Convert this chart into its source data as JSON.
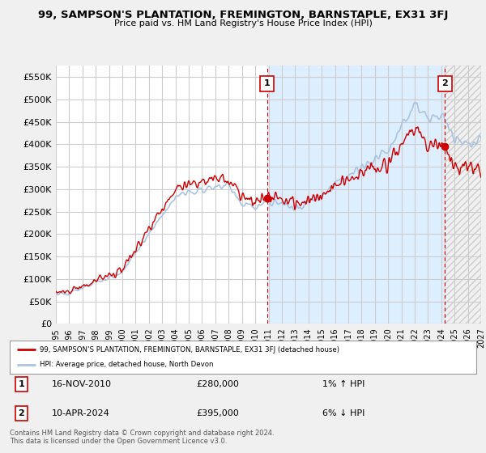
{
  "title": "99, SAMPSON'S PLANTATION, FREMINGTON, BARNSTAPLE, EX31 3FJ",
  "subtitle": "Price paid vs. HM Land Registry's House Price Index (HPI)",
  "legend_line1": "99, SAMPSON'S PLANTATION, FREMINGTON, BARNSTAPLE, EX31 3FJ (detached house)",
  "legend_line2": "HPI: Average price, detached house, North Devon",
  "annotation1_date": "16-NOV-2010",
  "annotation1_price": "£280,000",
  "annotation1_hpi": "1% ↑ HPI",
  "annotation2_date": "10-APR-2024",
  "annotation2_price": "£395,000",
  "annotation2_hpi": "6% ↓ HPI",
  "footnote": "Contains HM Land Registry data © Crown copyright and database right 2024.\nThis data is licensed under the Open Government Licence v3.0.",
  "hpi_color": "#aac4e0",
  "price_color": "#cc0000",
  "dot_color": "#cc0000",
  "bg_color": "#f0f0f0",
  "plot_bg_color": "#ffffff",
  "shaded_region_color": "#ddeeff",
  "grid_color": "#cccccc",
  "dashed_line_color": "#cc0000",
  "ylim": [
    0,
    575000
  ],
  "yticks": [
    0,
    50000,
    100000,
    150000,
    200000,
    250000,
    300000,
    350000,
    400000,
    450000,
    500000,
    550000
  ],
  "year_start": 1995,
  "year_end": 2027,
  "sale1_year": 2010.88,
  "sale1_value": 280000,
  "sale2_year": 2024.27,
  "sale2_value": 395000
}
